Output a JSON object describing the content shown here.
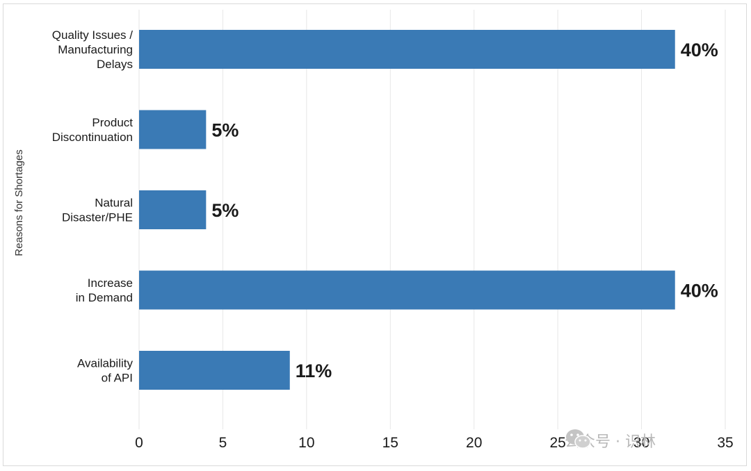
{
  "chart_data": {
    "type": "bar",
    "orientation": "horizontal",
    "ylabel": "Reasons for Shortages",
    "xlabel": "",
    "categories": [
      [
        "Quality Issues /",
        "Manufacturing",
        "Delays"
      ],
      [
        "Product",
        "Discontinuation"
      ],
      [
        "Natural",
        "Disaster/PHE"
      ],
      [
        "Increase",
        "in Demand"
      ],
      [
        "Availability",
        "of API"
      ]
    ],
    "values": [
      32,
      4,
      4,
      32,
      9
    ],
    "data_labels": [
      "40%",
      "5%",
      "5%",
      "40%",
      "11%"
    ],
    "xlim": [
      0,
      35
    ],
    "xticks": [
      0,
      5,
      10,
      15,
      20,
      25,
      30,
      35
    ],
    "grid": "vertical",
    "bar_color": "#3a7ab5"
  },
  "watermark": {
    "text": "公众号 · 识林",
    "icon": "wechat-icon"
  }
}
